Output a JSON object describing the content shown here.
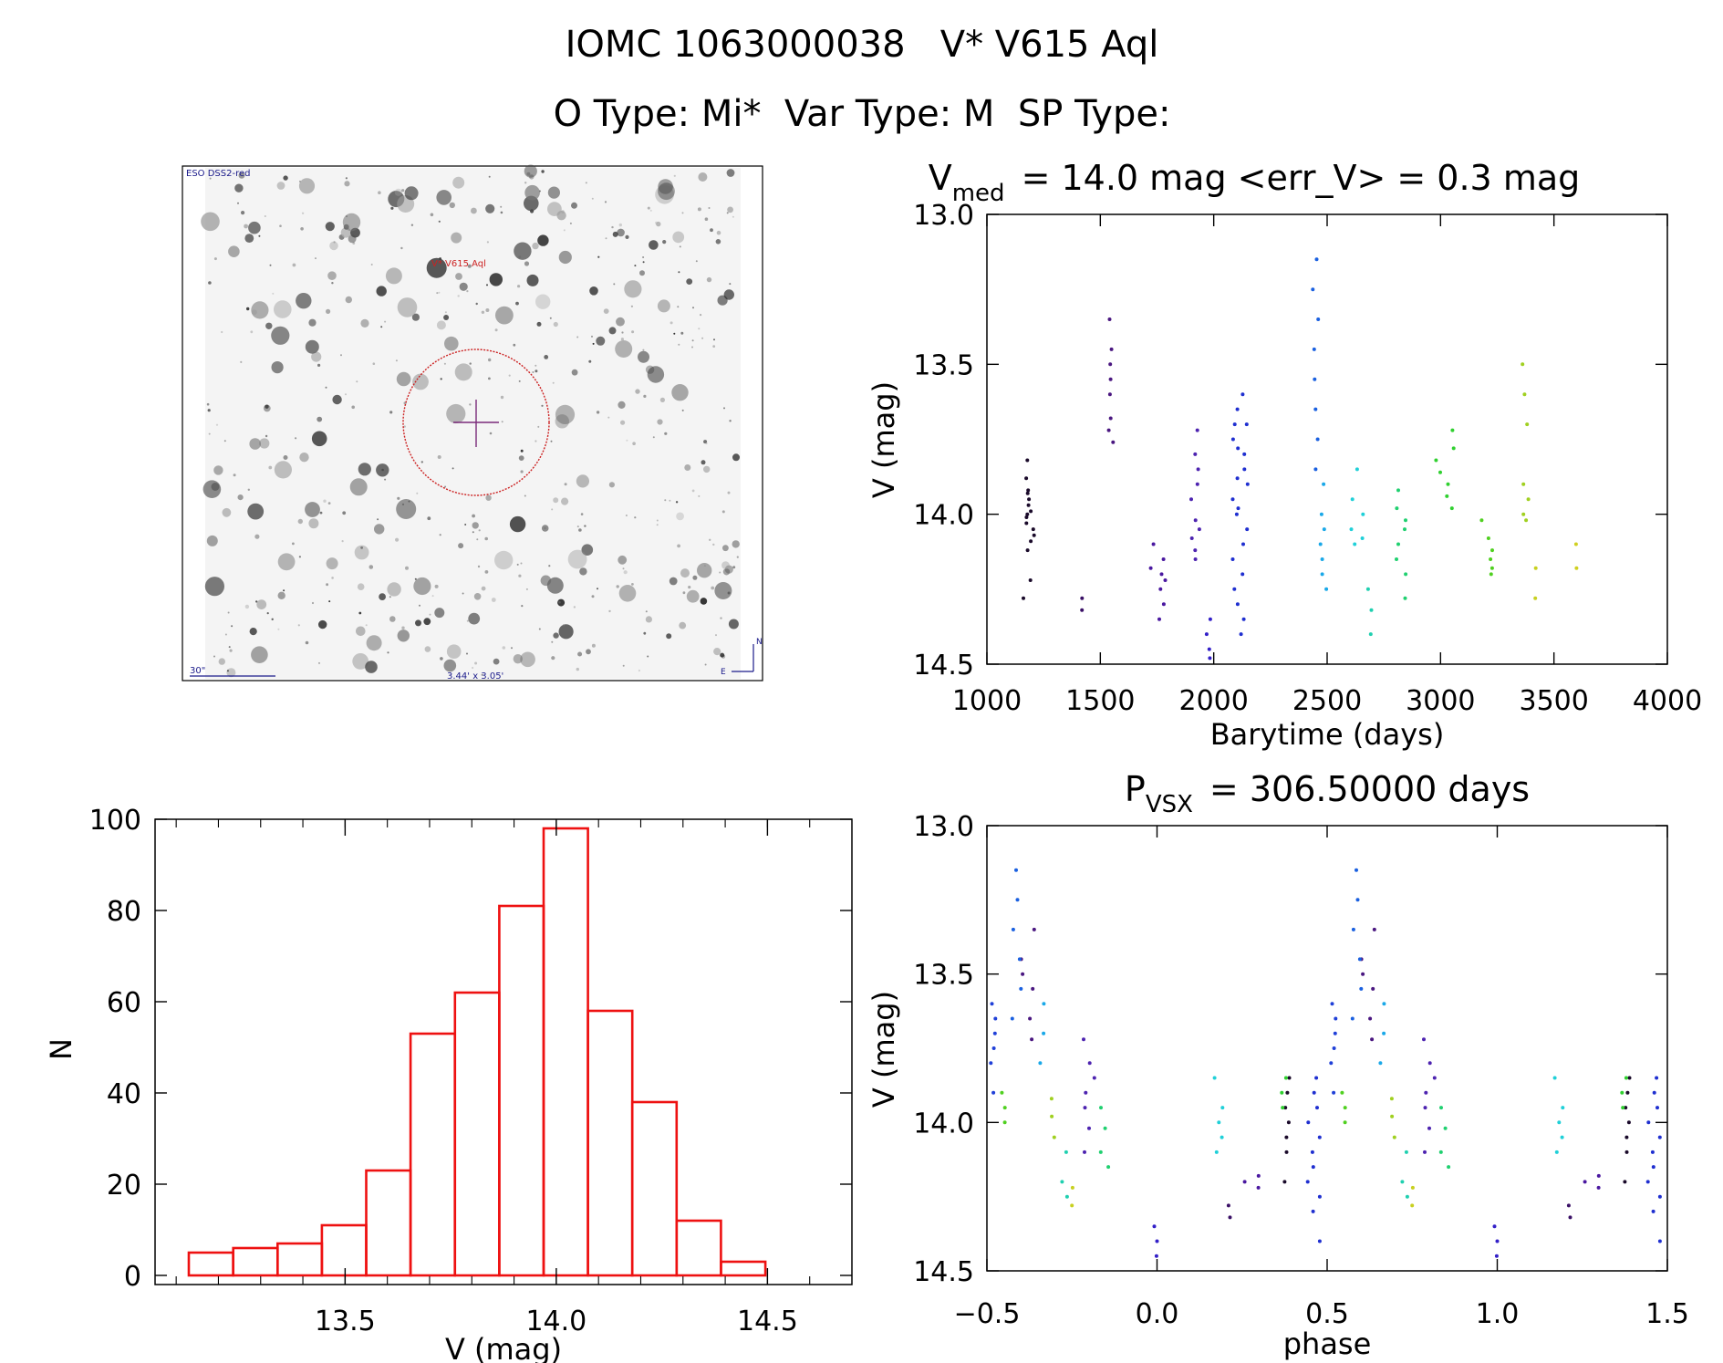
{
  "header": {
    "line1": "IOMC 1063000038   V* V615 Aql",
    "line2": "O Type: Mi*  Var Type: M  SP Type:"
  },
  "finder": {
    "survey_label": "ESO DSS2-red",
    "target_label": "V* V615 Aql",
    "scale_label": "30\"",
    "fov_label": "3.44' x 3.05'",
    "compass_n": "N",
    "compass_e": "E",
    "circle_color": "#cc2222",
    "cross_color": "#7a2a7a"
  },
  "chart_data": [
    {
      "type": "scatter",
      "title_main": "V",
      "title_sub": "med",
      "title_rest": "= 14.0 mag <err_V> = 0.3 mag",
      "xlabel": "Barytime (days)",
      "ylabel": "V (mag)",
      "xlim": [
        1000,
        4000
      ],
      "ylim": [
        13.0,
        14.5
      ],
      "y_inverted": true,
      "xticks": [
        1000,
        1500,
        2000,
        2500,
        3000,
        3500,
        4000
      ],
      "xtick_labels": [
        "1000",
        "1500",
        "2000",
        "2500",
        "3000",
        "3500",
        "4000"
      ],
      "yticks": [
        13.0,
        13.5,
        14.0,
        14.5
      ],
      "ytick_labels": [
        "13.0",
        "13.5",
        "14.0",
        "14.5"
      ],
      "groups": [
        {
          "color": "#1a0a2a",
          "x_range": [
            1160,
            1210
          ],
          "y_values": [
            13.82,
            13.88,
            13.92,
            13.95,
            13.97,
            13.99,
            14.01,
            14.03,
            14.05,
            14.07,
            14.09,
            14.12,
            13.93,
            14.0,
            14.22,
            14.28
          ]
        },
        {
          "color": "#3a1066",
          "x_range": [
            1410,
            1420
          ],
          "y_values": [
            14.28,
            14.32
          ]
        },
        {
          "color": "#4a1780",
          "x_range": [
            1530,
            1560
          ],
          "y_values": [
            13.35,
            13.45,
            13.5,
            13.55,
            13.6,
            13.68,
            13.72,
            13.76
          ]
        },
        {
          "color": "#4a18a0",
          "x_range": [
            1720,
            1790
          ],
          "y_values": [
            14.1,
            14.15,
            14.18,
            14.2,
            14.22,
            14.25,
            14.3,
            14.35
          ]
        },
        {
          "color": "#4d23b0",
          "x_range": [
            1900,
            1940
          ],
          "y_values": [
            13.72,
            13.8,
            13.85,
            13.9,
            13.95,
            14.02,
            14.05,
            14.08,
            14.12,
            14.15
          ]
        },
        {
          "color": "#3320c8",
          "x_range": [
            1960,
            1990
          ],
          "y_values": [
            14.35,
            14.4,
            14.45,
            14.48
          ]
        },
        {
          "color": "#1f2fd0",
          "x_range": [
            2080,
            2150
          ],
          "y_values": [
            13.6,
            13.65,
            13.7,
            13.75,
            13.8,
            13.85,
            13.9,
            13.95,
            14.0,
            14.05,
            14.1,
            14.15,
            14.2,
            14.25,
            14.3,
            14.35,
            14.4,
            13.7,
            13.78,
            13.88,
            13.98
          ]
        },
        {
          "color": "#1a60e0",
          "x_range": [
            2430,
            2470
          ],
          "y_values": [
            13.15,
            13.25,
            13.35,
            13.45,
            13.55,
            13.65,
            13.75,
            13.85
          ]
        },
        {
          "color": "#1aa8e8",
          "x_range": [
            2470,
            2500
          ],
          "y_values": [
            13.9,
            14.0,
            14.05,
            14.1,
            14.15,
            14.2,
            14.25
          ]
        },
        {
          "color": "#20d0d8",
          "x_range": [
            2600,
            2660
          ],
          "y_values": [
            13.85,
            13.95,
            14.0,
            14.05,
            14.08,
            14.1
          ]
        },
        {
          "color": "#20d0b0",
          "x_range": [
            2680,
            2700
          ],
          "y_values": [
            14.25,
            14.32,
            14.4
          ]
        },
        {
          "color": "#20d070",
          "x_range": [
            2800,
            2850
          ],
          "y_values": [
            13.92,
            13.98,
            14.02,
            14.05,
            14.1,
            14.15,
            14.2,
            14.28
          ]
        },
        {
          "color": "#30d030",
          "x_range": [
            2980,
            3060
          ],
          "y_values": [
            13.72,
            13.78,
            13.82,
            13.86,
            13.9,
            13.94,
            13.98
          ]
        },
        {
          "color": "#50d020",
          "x_range": [
            3180,
            3230
          ],
          "y_values": [
            14.02,
            14.08,
            14.12,
            14.15,
            14.18,
            14.2
          ]
        },
        {
          "color": "#a0d020",
          "x_range": [
            3360,
            3400
          ],
          "y_values": [
            13.5,
            13.6,
            13.7,
            13.9,
            13.95,
            14.0,
            14.02
          ]
        },
        {
          "color": "#c8d020",
          "x_range": [
            3410,
            3420
          ],
          "y_values": [
            14.18,
            14.28
          ]
        },
        {
          "color": "#d0d020",
          "x_range": [
            3590,
            3600
          ],
          "y_values": [
            14.1,
            14.18
          ]
        }
      ]
    },
    {
      "type": "bar",
      "title": "",
      "xlabel": "V (mag)",
      "ylabel": "N",
      "xlim": [
        13.05,
        14.7
      ],
      "ylim": [
        0,
        100
      ],
      "bar_color": "#ee1111",
      "bin_width": 0.105,
      "bin_starts": [
        13.13,
        13.235,
        13.34,
        13.445,
        13.55,
        13.655,
        13.76,
        13.865,
        13.97,
        14.075,
        14.18,
        14.285,
        14.39
      ],
      "values": [
        5,
        6,
        7,
        11,
        23,
        53,
        62,
        81,
        98,
        58,
        38,
        12,
        3
      ],
      "xticks": [
        13.5,
        14.0,
        14.5
      ],
      "xtick_labels": [
        "13.5",
        "14.0",
        "14.5"
      ],
      "yticks": [
        0,
        20,
        40,
        60,
        80,
        100
      ],
      "ytick_labels": [
        "0",
        "20",
        "40",
        "60",
        "80",
        "100"
      ]
    },
    {
      "type": "scatter",
      "title_main": "P",
      "title_sub": "VSX",
      "title_rest": "= 306.50000 days",
      "period_days": 306.5,
      "xlabel": "phase",
      "ylabel": "V (mag)",
      "xlim": [
        -0.5,
        1.5
      ],
      "ylim": [
        13.0,
        14.5
      ],
      "y_inverted": true,
      "xticks": [
        -0.5,
        0.0,
        0.5,
        1.0,
        1.5
      ],
      "xtick_labels": [
        "−0.5",
        "0.0",
        "0.5",
        "1.0",
        "1.5"
      ],
      "yticks": [
        13.0,
        13.5,
        14.0,
        14.5
      ],
      "ytick_labels": [
        "13.0",
        "13.5",
        "14.0",
        "14.5"
      ],
      "groups": [
        {
          "color": "#1a0a2a",
          "x_range": [
            0.37,
            0.39
          ],
          "y_values": [
            13.85,
            13.9,
            13.95,
            14.0,
            14.05,
            14.1,
            14.2
          ]
        },
        {
          "color": "#3a1066",
          "x_range": [
            0.21,
            0.22
          ],
          "y_values": [
            14.28,
            14.32
          ]
        },
        {
          "color": "#4a1780",
          "x_range": [
            0.6,
            0.64
          ],
          "y_values": [
            13.35,
            13.45,
            13.5,
            13.55,
            13.65,
            13.72
          ]
        },
        {
          "color": "#4a18a0",
          "x_range": [
            0.25,
            0.3
          ],
          "y_values": [
            14.18,
            14.2,
            14.22
          ]
        },
        {
          "color": "#4d23b0",
          "x_range": [
            0.78,
            0.82
          ],
          "y_values": [
            13.72,
            13.8,
            13.85,
            13.9,
            13.95,
            14.02,
            14.1
          ]
        },
        {
          "color": "#3320c8",
          "x_range": [
            0.99,
            1.0
          ],
          "y_values": [
            14.35,
            14.4,
            14.45
          ]
        },
        {
          "color": "#1f2fd0",
          "x_range": [
            0.43,
            0.48
          ],
          "y_values": [
            13.85,
            13.9,
            13.95,
            14.0,
            14.05,
            14.1,
            14.15,
            14.2,
            14.25,
            14.3,
            14.4
          ]
        },
        {
          "color": "#2040d8",
          "x_range": [
            0.51,
            0.53
          ],
          "y_values": [
            13.6,
            13.65,
            13.7,
            13.75,
            13.8,
            13.9
          ]
        },
        {
          "color": "#1a60e0",
          "x_range": [
            0.57,
            0.6
          ],
          "y_values": [
            13.15,
            13.25,
            13.35,
            13.45,
            13.55,
            13.65
          ]
        },
        {
          "color": "#1aa8e8",
          "x_range": [
            0.65,
            0.67
          ],
          "y_values": [
            13.6,
            13.7,
            13.8
          ]
        },
        {
          "color": "#20d0d8",
          "x_range": [
            0.15,
            0.2
          ],
          "y_values": [
            13.85,
            13.95,
            14.0,
            14.05,
            14.1
          ]
        },
        {
          "color": "#20d0b0",
          "x_range": [
            0.72,
            0.74
          ],
          "y_values": [
            14.1,
            14.2,
            14.25
          ]
        },
        {
          "color": "#20d070",
          "x_range": [
            0.83,
            0.87
          ],
          "y_values": [
            13.95,
            14.02,
            14.1,
            14.15
          ]
        },
        {
          "color": "#30d030",
          "x_range": [
            0.35,
            0.38
          ],
          "y_values": [
            13.85,
            13.9,
            13.95
          ]
        },
        {
          "color": "#50d020",
          "x_range": [
            0.54,
            0.56
          ],
          "y_values": [
            13.9,
            13.95,
            14.0
          ]
        },
        {
          "color": "#a0d020",
          "x_range": [
            0.67,
            0.7
          ],
          "y_values": [
            13.92,
            13.98,
            14.05
          ]
        },
        {
          "color": "#c8d020",
          "x_range": [
            0.74,
            0.76
          ],
          "y_values": [
            14.22,
            14.28
          ]
        }
      ]
    }
  ]
}
